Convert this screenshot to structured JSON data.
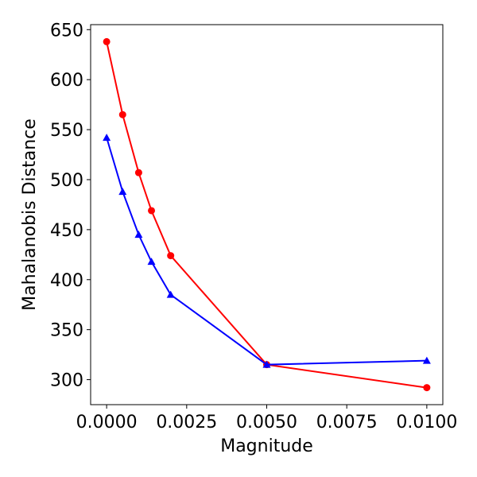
{
  "chart_data": {
    "type": "line",
    "title": "",
    "xlabel": "Magnitude",
    "ylabel": "Mahalanobis Distance",
    "xlim": [
      -0.0005,
      0.0105
    ],
    "ylim": [
      275,
      655
    ],
    "x_ticks": [
      0.0,
      0.0025,
      0.005,
      0.0075,
      0.01
    ],
    "x_tick_labels": [
      "0.0000",
      "0.0025",
      "0.0050",
      "0.0075",
      "0.0100"
    ],
    "y_ticks": [
      300,
      350,
      400,
      450,
      500,
      550,
      600,
      650
    ],
    "y_tick_labels": [
      "300",
      "350",
      "400",
      "450",
      "500",
      "550",
      "600",
      "650"
    ],
    "grid": false,
    "legend": "none",
    "x": [
      0.0,
      0.0005,
      0.001,
      0.0014,
      0.002,
      0.005,
      0.01
    ],
    "series": [
      {
        "name": "red-circle",
        "color": "#ff0000",
        "marker": "circle",
        "values": [
          638,
          565,
          507,
          469,
          424,
          315,
          292
        ]
      },
      {
        "name": "blue-triangle",
        "color": "#0000ff",
        "marker": "triangle",
        "values": [
          542,
          488,
          445,
          418,
          385,
          315,
          319
        ]
      }
    ]
  }
}
